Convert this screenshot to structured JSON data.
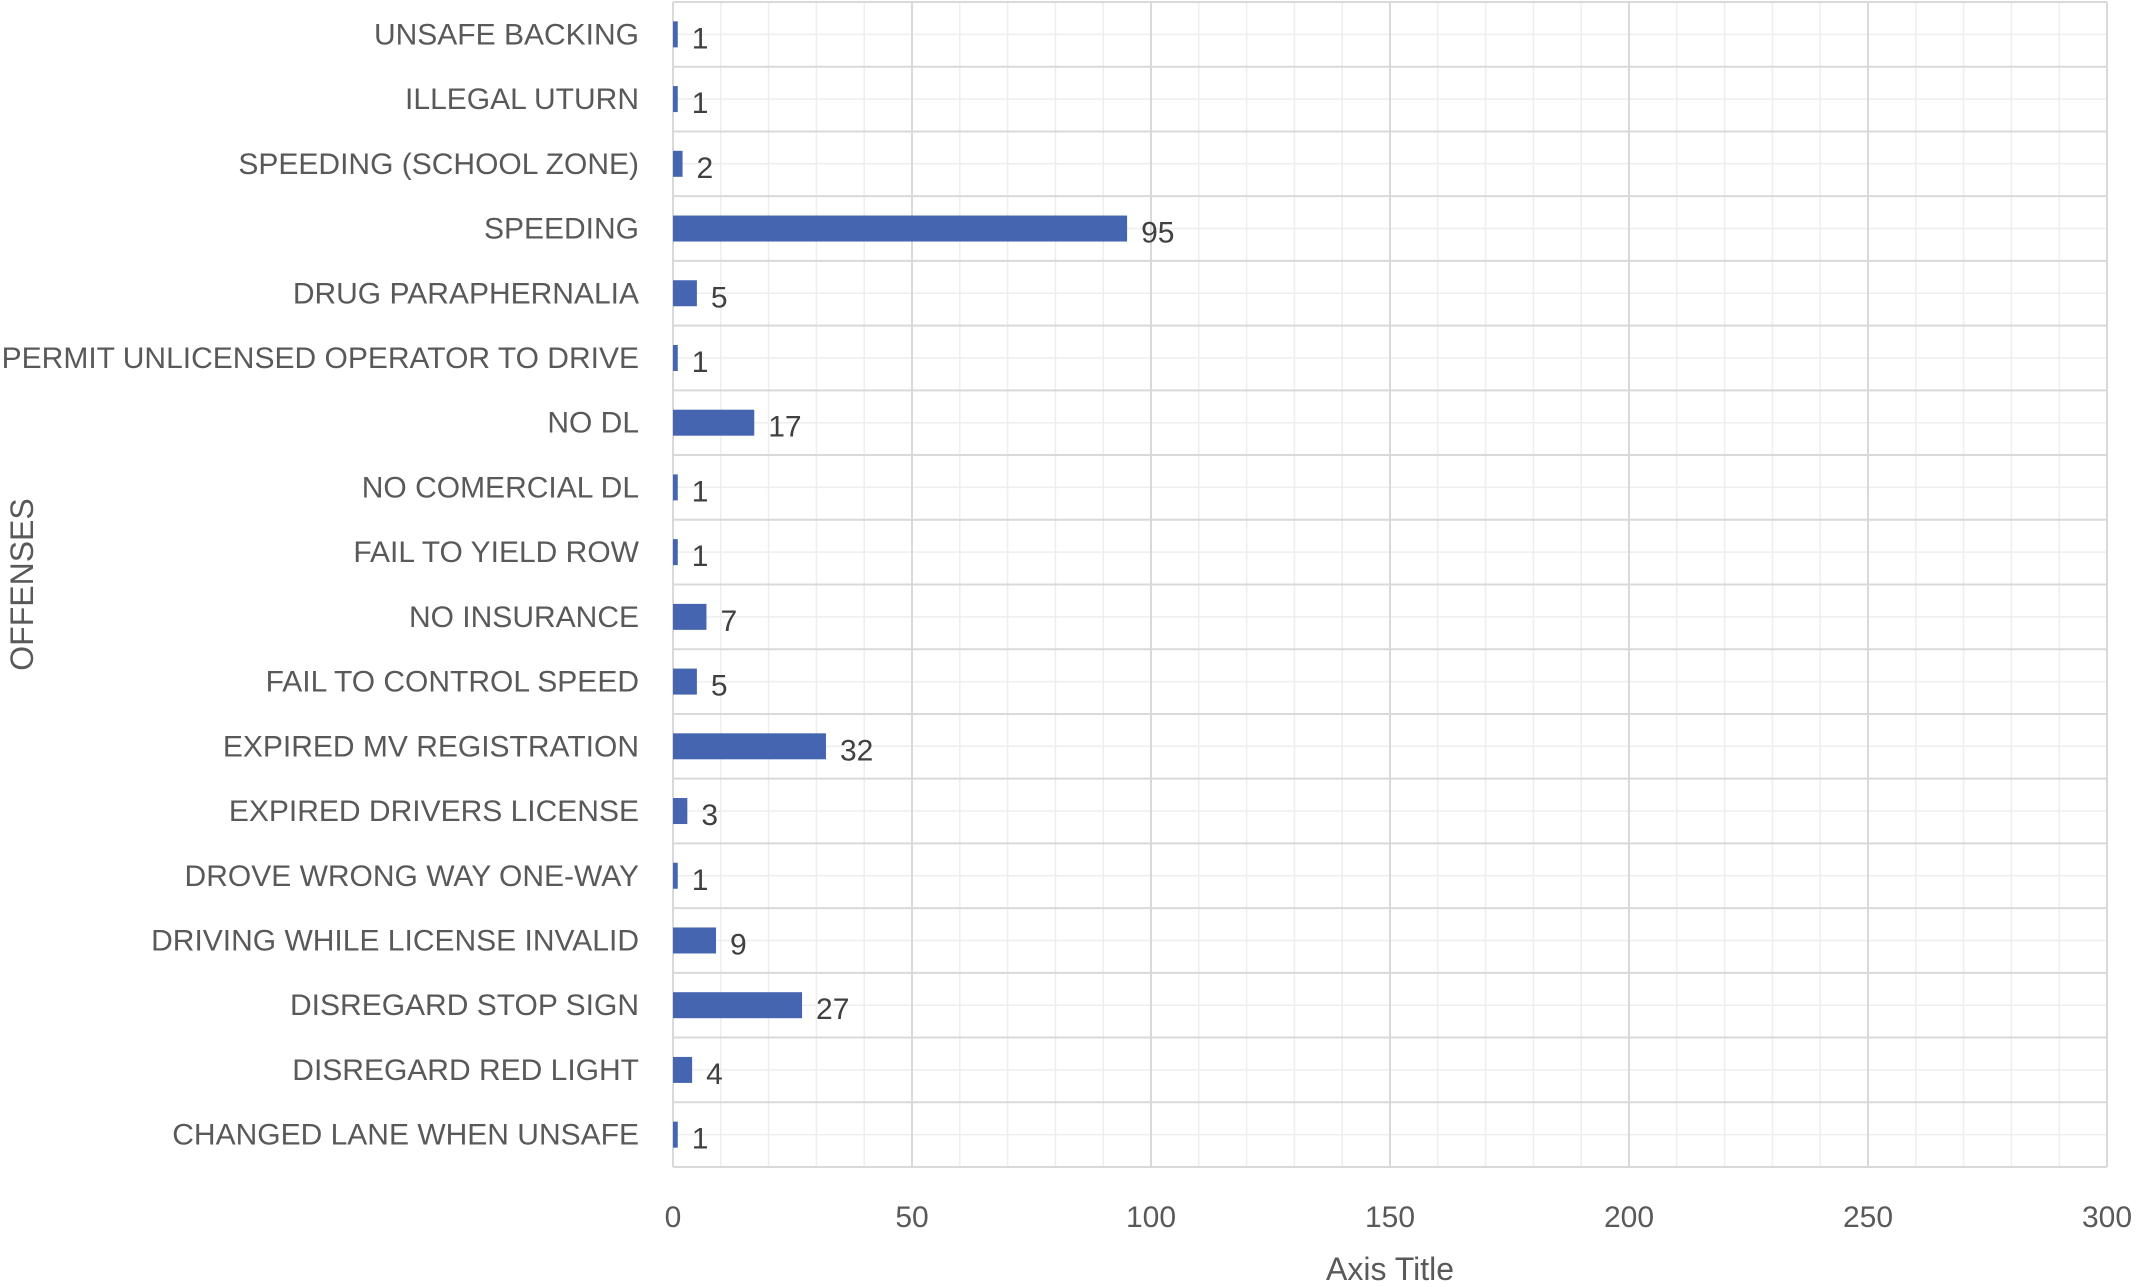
{
  "chart_data": {
    "type": "bar",
    "orientation": "horizontal",
    "categories": [
      "UNSAFE BACKING",
      "ILLEGAL UTURN",
      "SPEEDING (SCHOOL ZONE)",
      "SPEEDING",
      "DRUG PARAPHERNALIA",
      "PERMIT UNLICENSED OPERATOR TO DRIVE",
      "NO DL",
      "NO COMERCIAL DL",
      "FAIL TO YIELD ROW",
      "NO INSURANCE",
      "FAIL TO CONTROL SPEED",
      "EXPIRED MV REGISTRATION",
      "EXPIRED DRIVERS LICENSE",
      "DROVE WRONG WAY ONE-WAY",
      "DRIVING WHILE LICENSE INVALID",
      "DISREGARD STOP SIGN",
      "DISREGARD RED LIGHT",
      "CHANGED LANE WHEN UNSAFE"
    ],
    "values": [
      1,
      1,
      2,
      95,
      5,
      1,
      17,
      1,
      1,
      7,
      5,
      32,
      3,
      1,
      9,
      27,
      4,
      1
    ],
    "xlim": [
      0,
      300
    ],
    "xticks": [
      0,
      50,
      100,
      150,
      200,
      250,
      300
    ],
    "xlabel": "Axis Title",
    "ylabel": "OFFENSES",
    "grid": true,
    "minor_grid": true,
    "bar_color": "#4565b0",
    "grid_color": "#d9d9d9",
    "minor_grid_color": "#eeeeee"
  }
}
